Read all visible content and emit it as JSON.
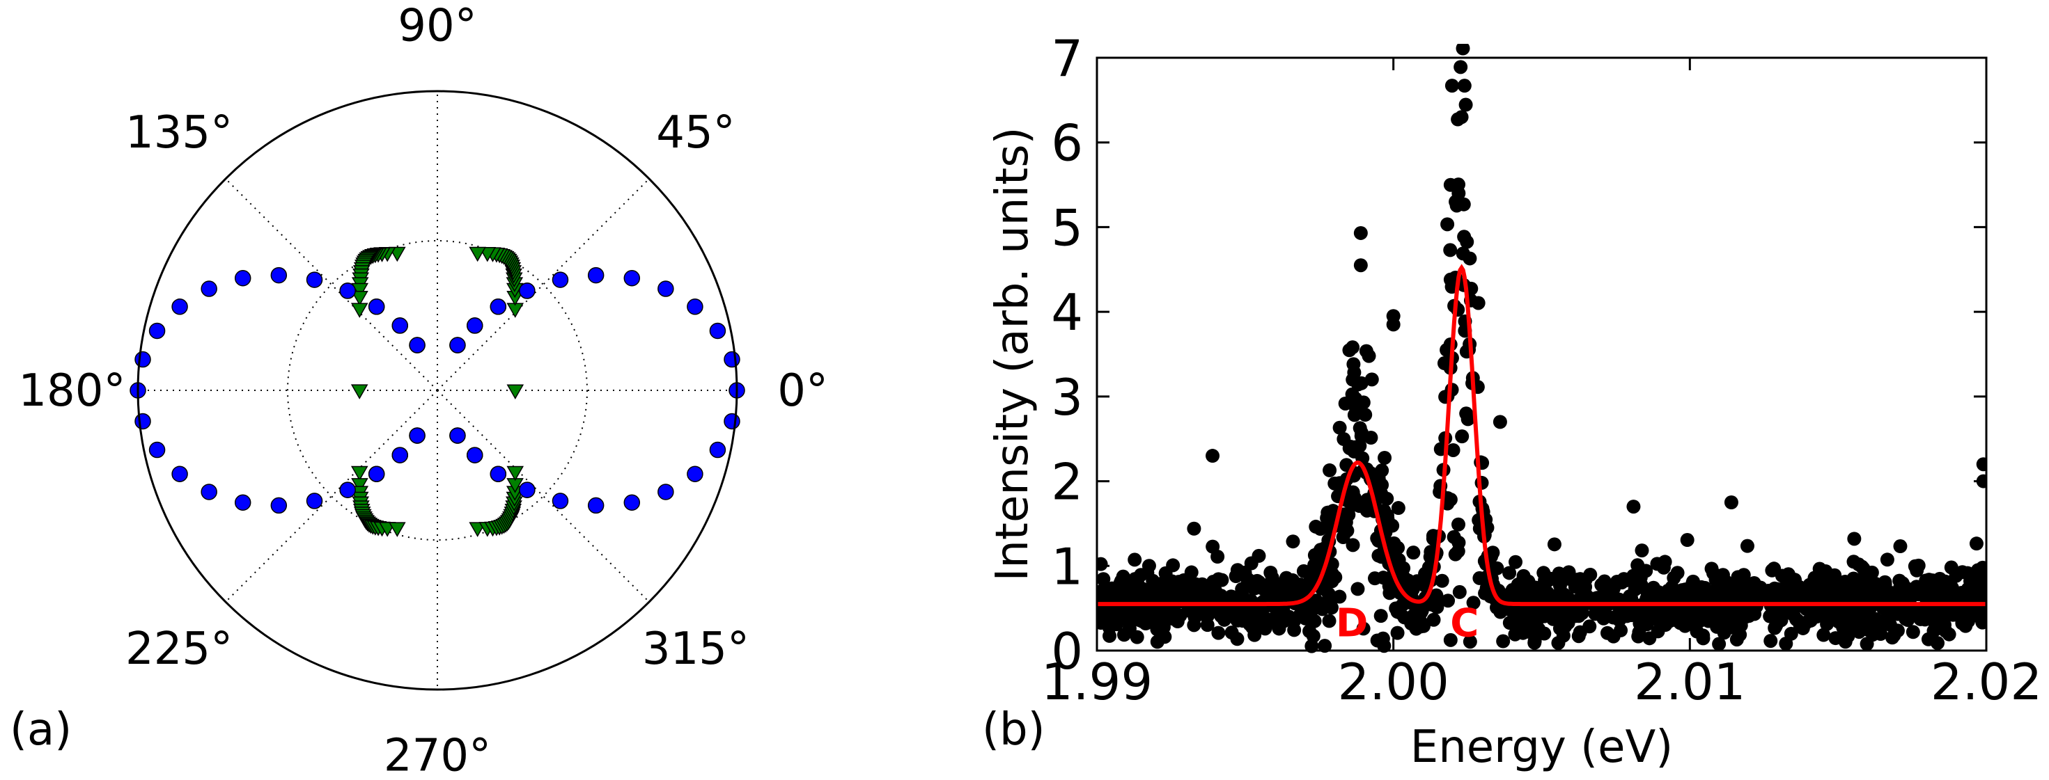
{
  "chart_data": [
    {
      "type": "polar-scatter",
      "panel_label": "(a)",
      "angle_tick_labels": [
        "0°",
        "45°",
        "90°",
        "135°",
        "180°",
        "225°",
        "270°",
        "315°"
      ],
      "angle_ticks_deg": [
        0,
        45,
        90,
        135,
        180,
        225,
        270,
        315
      ],
      "r_max": 1.0,
      "r_grid": [
        0.5
      ],
      "series": [
        {
          "name": "blue circles",
          "marker": "circle",
          "color": "#0000ff",
          "model": "r = cos^2(theta)",
          "theta_step_deg": 6,
          "r_min_plot": 0.1
        },
        {
          "name": "green triangles",
          "marker": "triangle-down",
          "color": "#008000",
          "model": "rectangle-like loop",
          "half_width_x": 0.26,
          "half_height_y": 0.46,
          "points": 86
        }
      ]
    },
    {
      "type": "scatter+line",
      "panel_label": "(b)",
      "xlabel": "Energy (eV)",
      "ylabel": "Intensity (arb. units)",
      "xlim": [
        1.99,
        2.02
      ],
      "ylim": [
        0,
        7
      ],
      "x_ticks": [
        1.99,
        2.0,
        2.01,
        2.02
      ],
      "x_tick_labels": [
        "1.99",
        "2.00",
        "2.01",
        "2.02"
      ],
      "y_ticks": [
        0,
        1,
        2,
        3,
        4,
        5,
        6,
        7
      ],
      "y_tick_labels": [
        "0",
        "1",
        "2",
        "3",
        "4",
        "5",
        "6",
        "7"
      ],
      "scatter": {
        "color": "#000000",
        "count": 1500,
        "peak_outliers": [
          {
            "x": 2.0024,
            "y": 6.67
          },
          {
            "x": 2.0023,
            "y": 6.3
          },
          {
            "x": 2.0022,
            "y": 5.4
          },
          {
            "x": 2.0021,
            "y": 5.3
          },
          {
            "x": 1.9989,
            "y": 4.93
          },
          {
            "x": 1.9989,
            "y": 4.55
          },
          {
            "x": 2.0,
            "y": 3.95
          },
          {
            "x": 2.0,
            "y": 3.85
          },
          {
            "x": 2.0036,
            "y": 2.7
          },
          {
            "x": 1.9939,
            "y": 2.3
          },
          {
            "x": 2.0199,
            "y": 2.2
          },
          {
            "x": 2.0199,
            "y": 2.0
          },
          {
            "x": 2.0114,
            "y": 1.75
          },
          {
            "x": 2.0081,
            "y": 1.7
          }
        ]
      },
      "fit": {
        "color": "#ff0000",
        "baseline": 0.55,
        "peaks": [
          {
            "name": "D",
            "center": 1.9988,
            "amplitude": 1.67,
            "sigma": 0.00068
          },
          {
            "name": "C",
            "center": 2.0023,
            "amplitude": 3.97,
            "sigma": 0.00042
          }
        ]
      },
      "annotations": [
        {
          "text": "D",
          "x": 1.9986,
          "y": 0.35,
          "color": "#ff0000"
        },
        {
          "text": "C",
          "x": 2.0024,
          "y": 0.35,
          "color": "#ff0000"
        }
      ]
    }
  ]
}
